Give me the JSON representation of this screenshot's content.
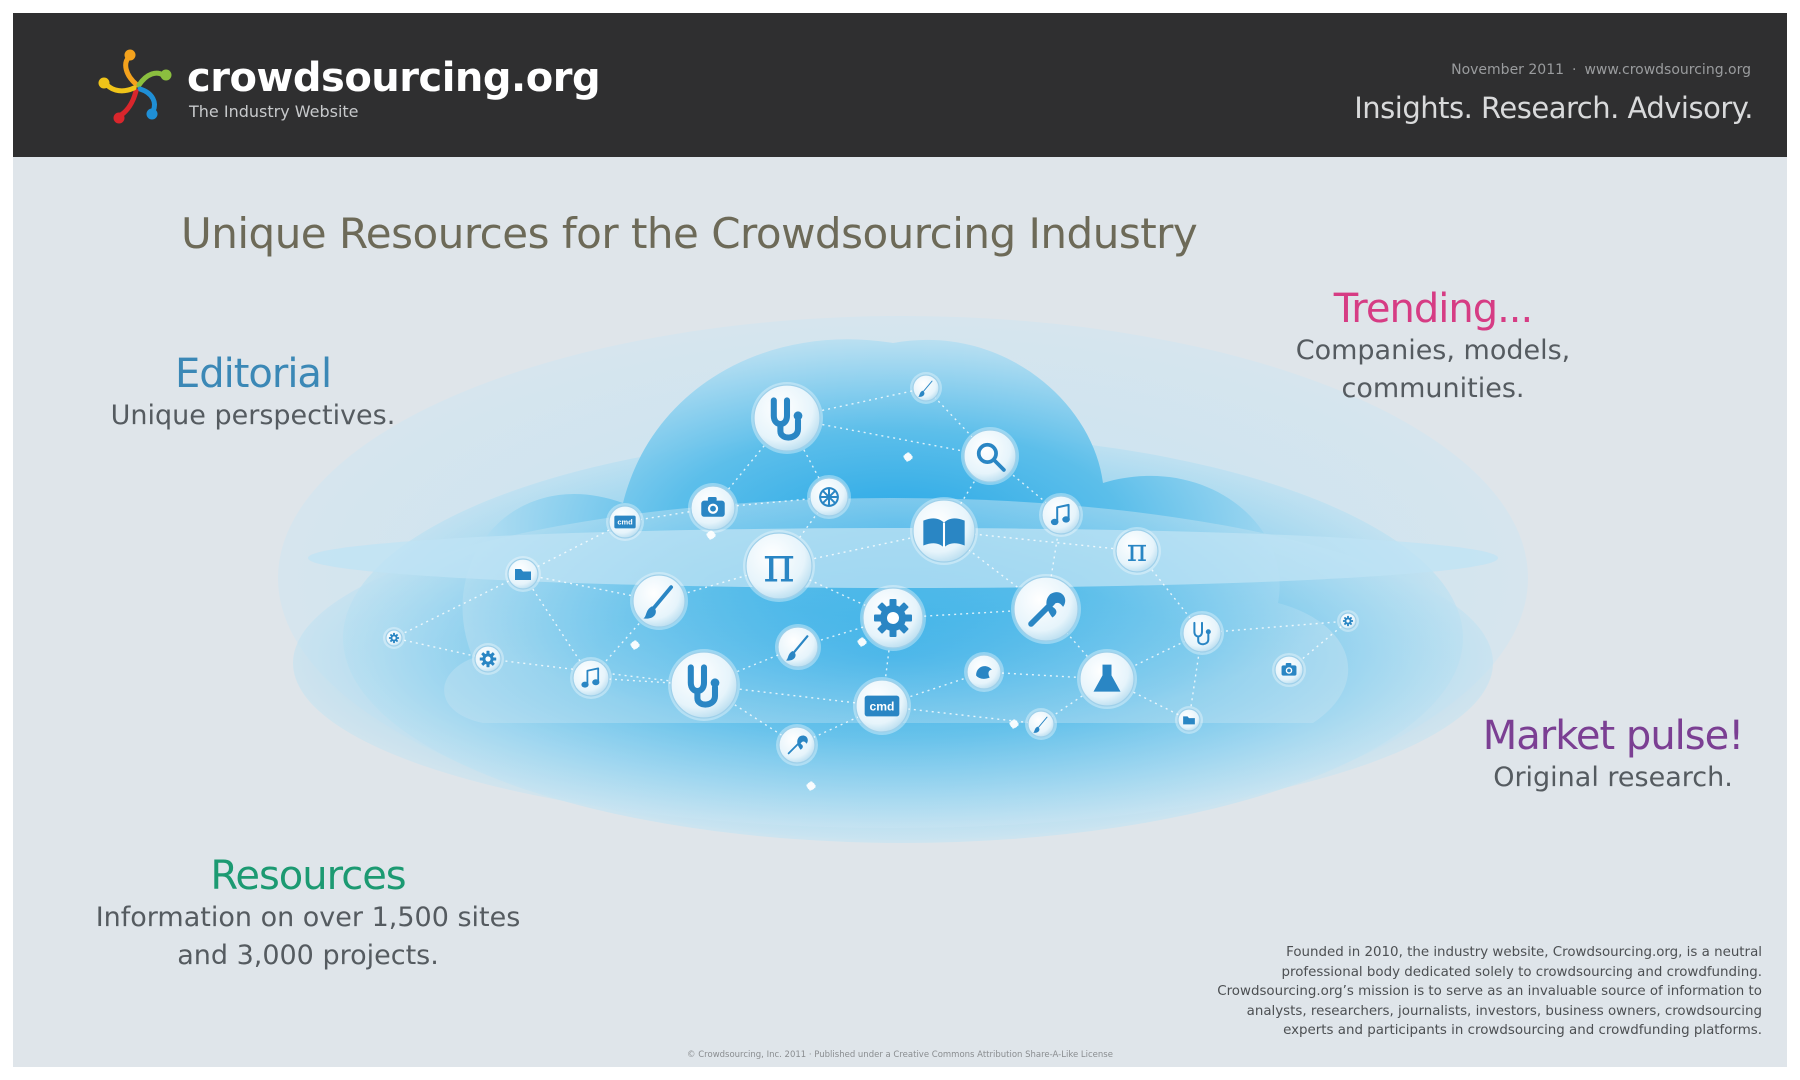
{
  "header": {
    "logo_bold": "crowd",
    "logo_rest": "sourcing.org",
    "tagline": "The Industry Website",
    "date": "November 2011",
    "separator": "·",
    "website": "www.crowdsourcing.org",
    "slogan": "Insights. Research. Advisory."
  },
  "title": "Unique Resources for the Crowdsourcing Industry",
  "blocks": {
    "editorial": {
      "heading": "Editorial",
      "lines": [
        "Unique perspectives."
      ]
    },
    "trending": {
      "heading": "Trending...",
      "lines": [
        "Companies, models,",
        "communities."
      ]
    },
    "market": {
      "heading": "Market pulse!",
      "lines": [
        "Original research."
      ]
    },
    "resources": {
      "heading": "Resources",
      "lines": [
        "Information on over 1,500 sites",
        "and 3,000 projects."
      ]
    }
  },
  "about": [
    "Founded in 2010, the industry website, Crowdsourcing.org, is a neutral",
    "professional body dedicated solely to crowdsourcing and crowdfunding.",
    "Crowdsourcing.org’s mission is to serve as an invaluable source of information to",
    "analysts, researchers, journalists, investors, business owners, crowdsourcing",
    "experts and participants in crowdsourcing and crowdfunding platforms."
  ],
  "copyright": "© Crowdsourcing, Inc. 2011 · Published under a Creative Commons Attribution Share-A-Like License",
  "cloud_icons": [
    {
      "icon": "stethoscope"
    },
    {
      "icon": "brush"
    },
    {
      "icon": "magnifier"
    },
    {
      "icon": "camera"
    },
    {
      "icon": "wheel"
    },
    {
      "icon": "cmd",
      "label": "cmd"
    },
    {
      "icon": "music"
    },
    {
      "icon": "book"
    },
    {
      "icon": "pi",
      "label": "π"
    },
    {
      "icon": "pi",
      "label": "π"
    },
    {
      "icon": "folder"
    },
    {
      "icon": "brush"
    },
    {
      "icon": "gear"
    },
    {
      "icon": "wrench"
    },
    {
      "icon": "gear"
    },
    {
      "icon": "gear"
    },
    {
      "icon": "stethoscope"
    },
    {
      "icon": "gear"
    },
    {
      "icon": "music"
    },
    {
      "icon": "brush"
    },
    {
      "icon": "stethoscope"
    },
    {
      "icon": "cmd",
      "label": "cmd"
    },
    {
      "icon": "bird"
    },
    {
      "icon": "flask"
    },
    {
      "icon": "camera"
    },
    {
      "icon": "wrench"
    },
    {
      "icon": "brush"
    },
    {
      "icon": "folder"
    }
  ],
  "colors": {
    "header_bg": "#2f2f30",
    "page_bg": "#dfe5ea",
    "title": "#6d6a58",
    "editorial": "#3b88b6",
    "trending": "#d63c84",
    "market": "#7b3f93",
    "resources": "#1c9a72",
    "icon_glyph": "#2a86c4"
  }
}
